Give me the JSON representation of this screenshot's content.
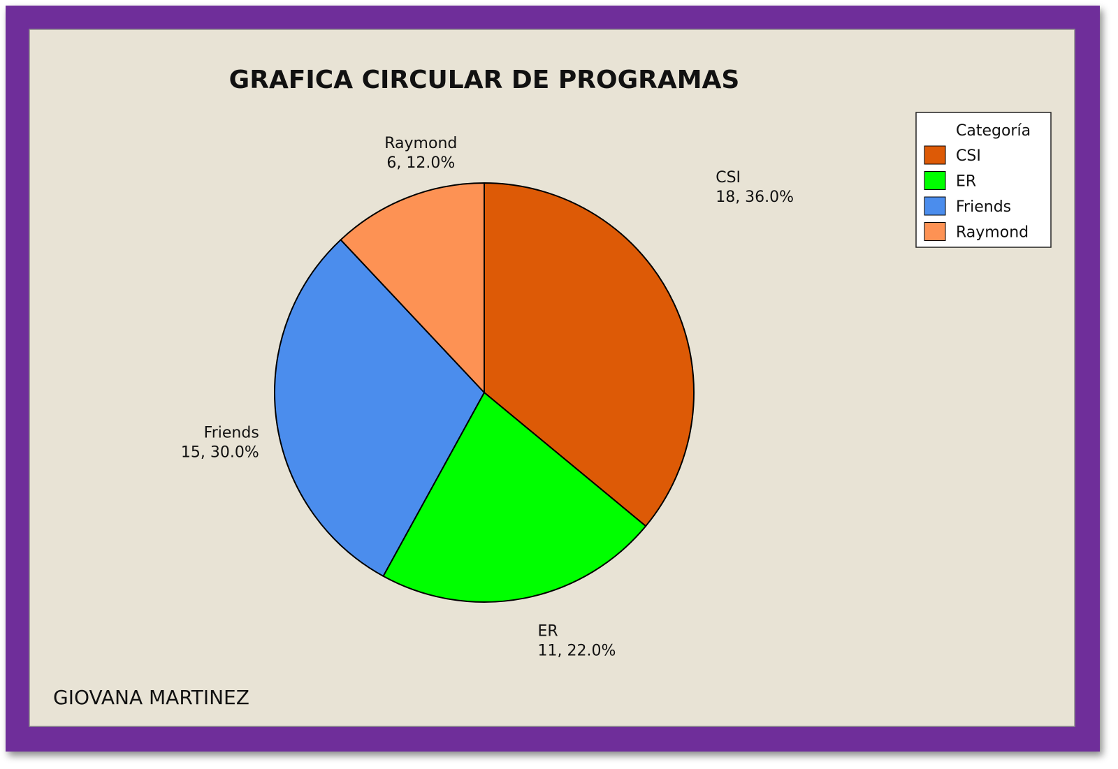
{
  "chart_data": {
    "type": "pie",
    "title": "GRAFICA CIRCULAR DE PROGRAMAS",
    "legend_title": "Categoría",
    "legend_position": "top-right",
    "categories": [
      "CSI",
      "ER",
      "Friends",
      "Raymond"
    ],
    "values": [
      18,
      11,
      15,
      6
    ],
    "percentages": [
      "36.0%",
      "22.0%",
      "30.0%",
      "12.0%"
    ],
    "value_labels": [
      "18, 36.0%",
      "11, 22.0%",
      "15, 30.0%",
      "6, 12.0%"
    ],
    "colors": [
      "#dd5a06",
      "#00ff00",
      "#4b8ded",
      "#fd9254"
    ]
  },
  "footer": {
    "author": "GIOVANA MARTINEZ"
  },
  "style": {
    "frame_color": "#6f2e9a",
    "panel_color": "#e8e3d5"
  }
}
